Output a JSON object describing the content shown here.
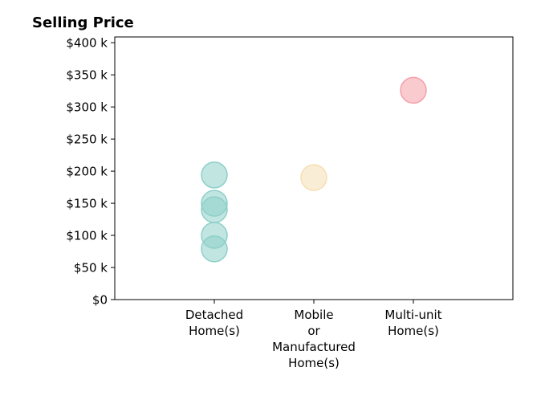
{
  "chart_data": {
    "type": "scatter",
    "title": "Selling Price",
    "categories": [
      "Detached\nHome(s)",
      "Mobile\nor\nManufactured\nHome(s)",
      "Multi-unit\nHome(s)"
    ],
    "values": [
      [
        194,
        150,
        140,
        100,
        79
      ],
      [
        190
      ],
      [
        326
      ]
    ],
    "colors": [
      "#8ecfc9",
      "#f5deb3",
      "#f4a0a8"
    ],
    "ylim": [
      0,
      409
    ],
    "yticks": [
      {
        "value": 0,
        "label": "$0"
      },
      {
        "value": 50,
        "label": "$50 k"
      },
      {
        "value": 100,
        "label": "$100 k"
      },
      {
        "value": 150,
        "label": "$150 k"
      },
      {
        "value": 200,
        "label": "$200 k"
      },
      {
        "value": 250,
        "label": "$250 k"
      },
      {
        "value": 300,
        "label": "$300 k"
      },
      {
        "value": 350,
        "label": "$350 k"
      },
      {
        "value": 400,
        "label": "$400 k"
      }
    ]
  }
}
